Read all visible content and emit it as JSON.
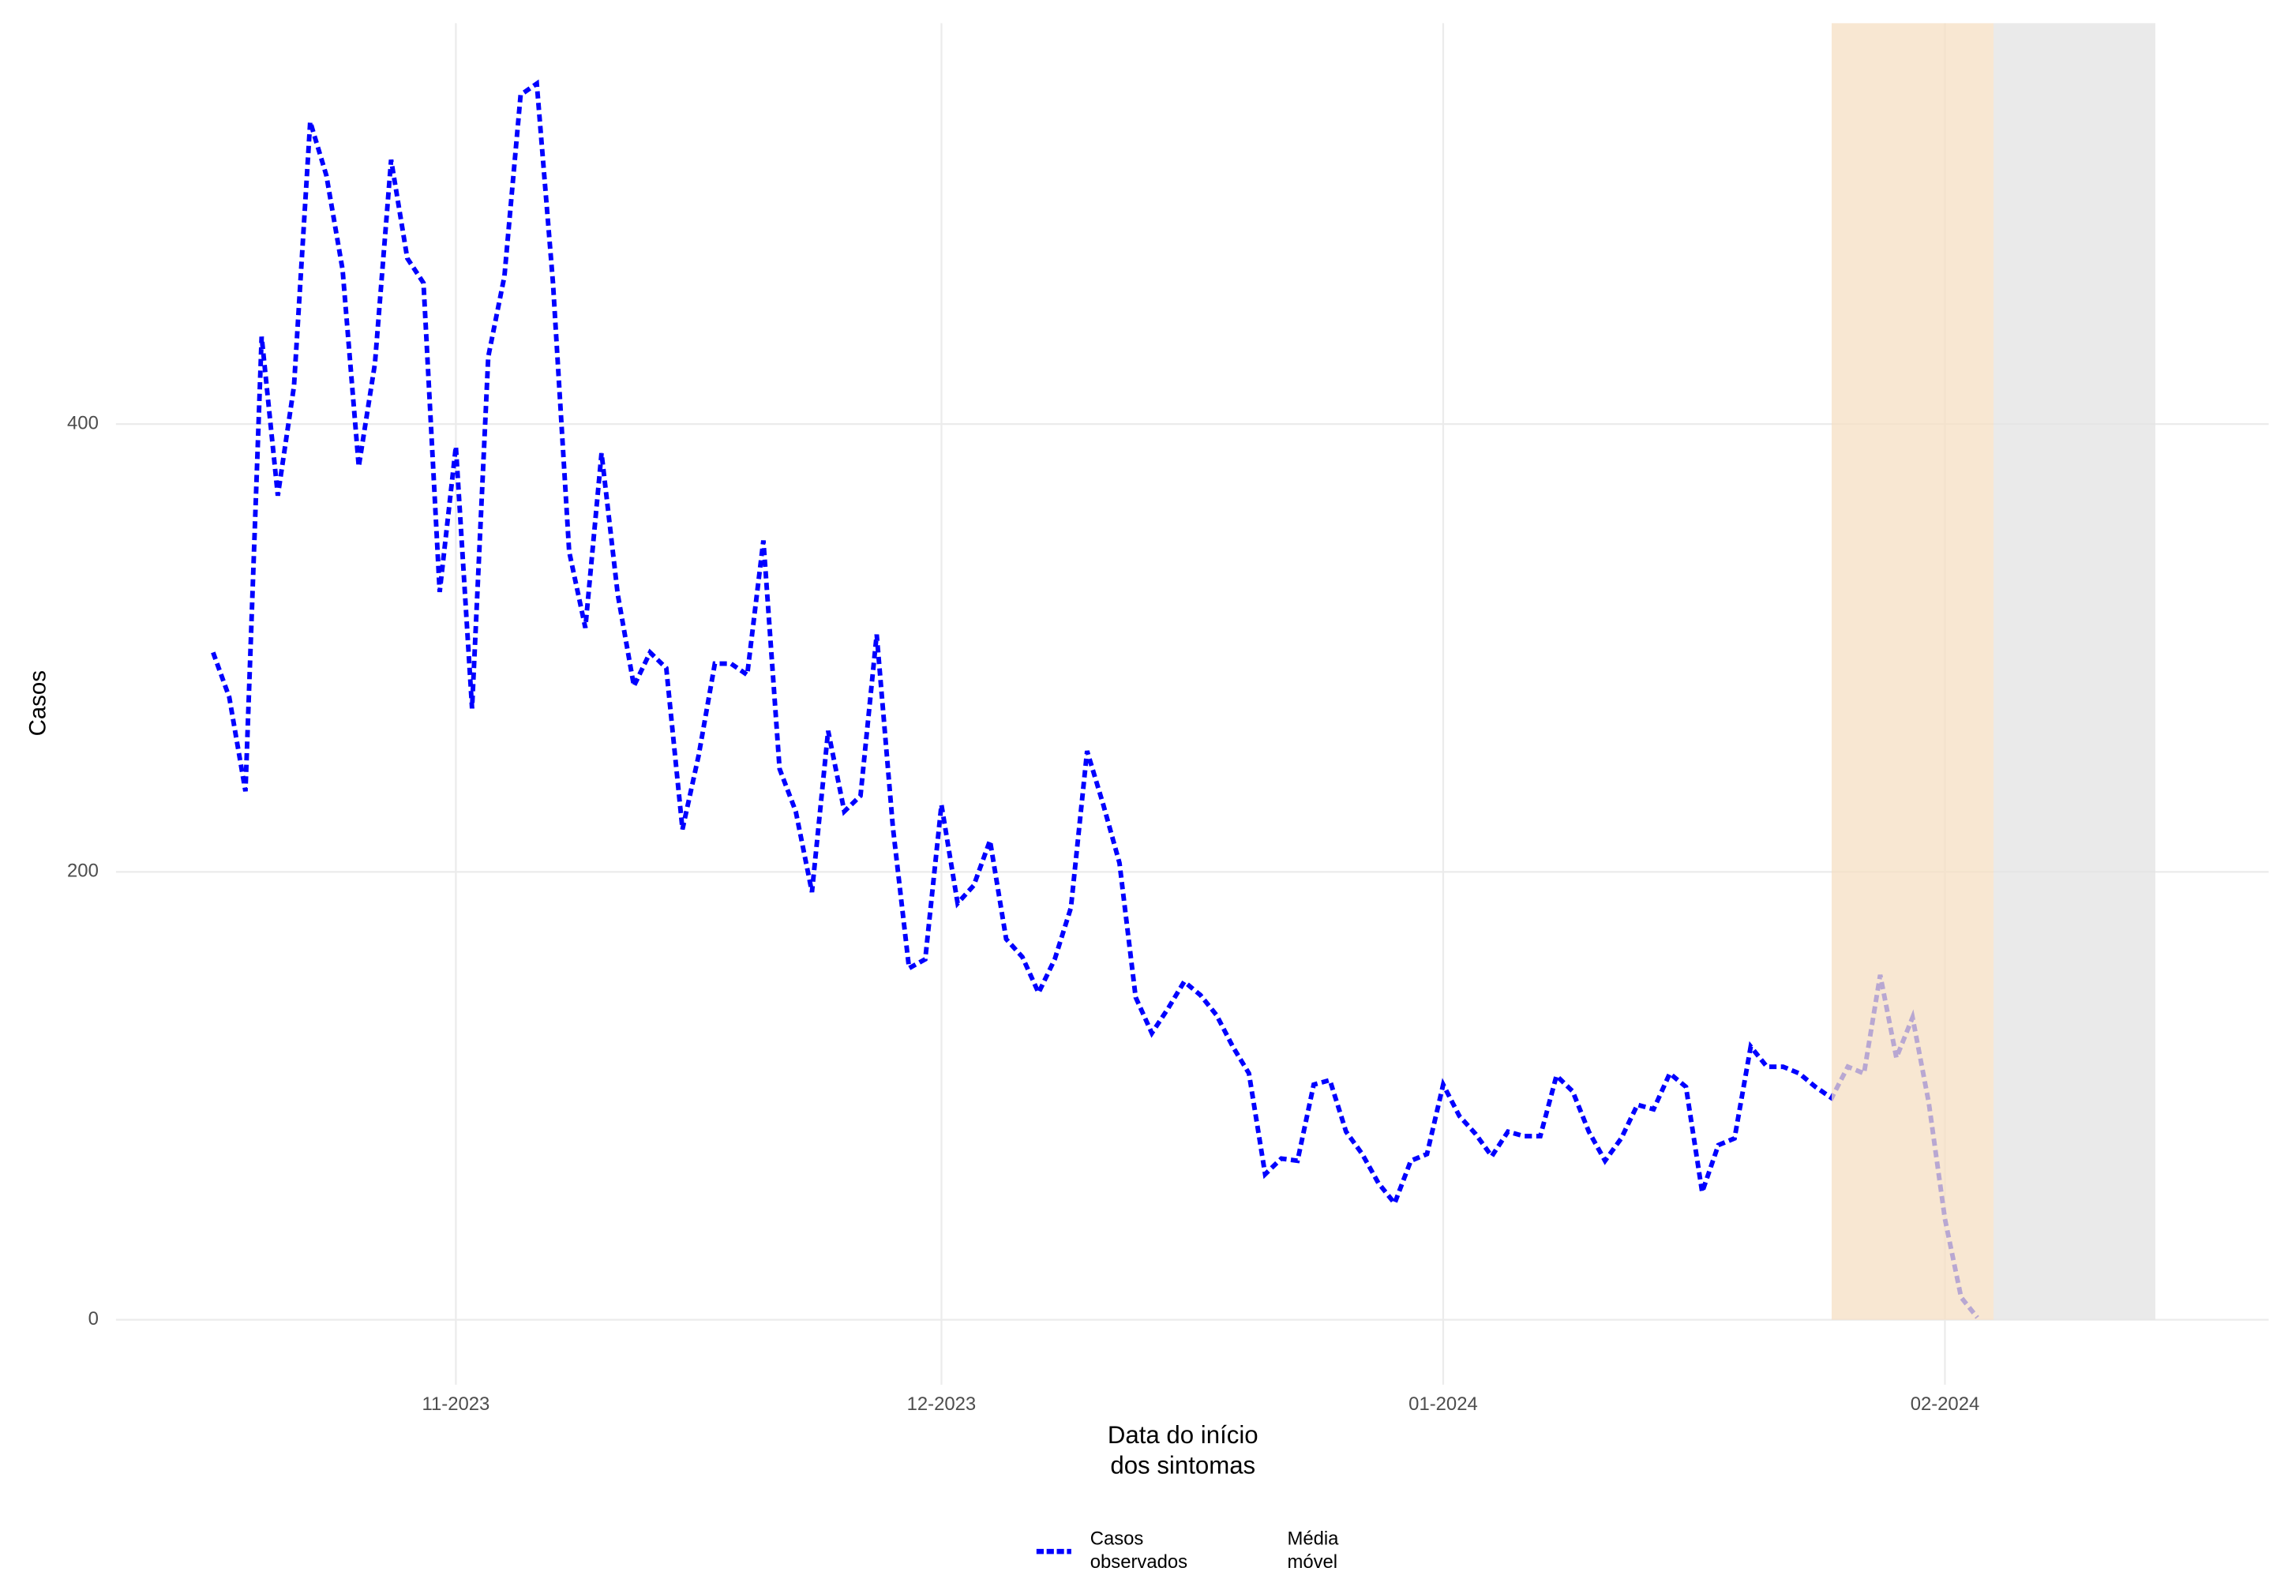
{
  "chart_data": {
    "type": "line",
    "x_label": "Data do início dos sintomas",
    "y_label": "Casos",
    "x": [
      0,
      1,
      2,
      3,
      4,
      5,
      6,
      7,
      8,
      9,
      10,
      11,
      12,
      13,
      14,
      15,
      16,
      17,
      18,
      19,
      20,
      21,
      22,
      23,
      24,
      25,
      26,
      27,
      28,
      29,
      30,
      31,
      32,
      33,
      34,
      35,
      36,
      37,
      38,
      39,
      40,
      41,
      42,
      43,
      44,
      45,
      46,
      47,
      48,
      49,
      50,
      51,
      52,
      53,
      54,
      55,
      56,
      57,
      58,
      59,
      60,
      61,
      62,
      63,
      64,
      65,
      66,
      67,
      68,
      69,
      70,
      71,
      72,
      73,
      74,
      75,
      76,
      77,
      78,
      79,
      80,
      81,
      82,
      83,
      84,
      85,
      86,
      87,
      88,
      89,
      90,
      91,
      92,
      93,
      94,
      95,
      96,
      97,
      98,
      99,
      100,
      101,
      102,
      103,
      104,
      105,
      106,
      107,
      108,
      109
    ],
    "series": [
      {
        "name": "Casos observados",
        "color": "#0000ff",
        "values": [
          298,
          278,
          236,
          439,
          368,
          417,
          535,
          511,
          469,
          381,
          427,
          518,
          474,
          463,
          325,
          390,
          273,
          430,
          466,
          547,
          552,
          463,
          343,
          309,
          387,
          324,
          283,
          298,
          291,
          219,
          252,
          293,
          293,
          288,
          348,
          246,
          227,
          191,
          263,
          227,
          234,
          306,
          220,
          157,
          161,
          230,
          186,
          194,
          214,
          170,
          162,
          146,
          161,
          184,
          254,
          230,
          204,
          144,
          128,
          139,
          151,
          145,
          136,
          122,
          110,
          65,
          72,
          71,
          105,
          107,
          84,
          74,
          61,
          52,
          71,
          74,
          105,
          91,
          83,
          73,
          84,
          82,
          82,
          109,
          102,
          84,
          71,
          81,
          96,
          94,
          110,
          104,
          57,
          78,
          81,
          122,
          113,
          113,
          110,
          104,
          99,
          113,
          110,
          154,
          117,
          135,
          97,
          45,
          10,
          1
        ]
      },
      {
        "name": "Média móvel",
        "values": [
          null,
          null,
          null,
          null,
          null,
          null,
          null,
          null,
          null,
          null,
          null,
          null,
          null,
          null,
          null,
          null,
          null,
          null,
          null,
          null,
          null,
          null,
          null,
          null,
          null,
          null,
          null,
          null,
          null,
          null,
          null,
          null,
          null,
          null,
          null,
          null,
          null,
          null,
          null,
          null,
          null,
          null,
          null,
          null,
          null,
          null,
          null,
          null,
          null,
          null,
          null,
          null,
          null,
          null,
          null,
          null,
          null,
          null,
          null,
          null,
          null,
          null,
          null,
          null,
          null,
          null,
          null,
          null,
          null,
          null,
          null,
          null,
          null,
          null,
          null,
          null,
          null,
          null,
          null,
          null,
          null,
          null,
          null,
          null,
          null,
          null,
          null,
          null,
          null,
          null,
          null,
          null,
          null,
          null,
          null,
          null,
          null,
          null,
          null,
          null,
          null,
          null,
          null,
          null,
          null,
          null,
          null,
          null,
          null,
          null
        ]
      }
    ],
    "shaded_regions": [
      {
        "xlim": [
          100,
          110
        ],
        "color": "#f5dfc3"
      },
      {
        "xlim": [
          110,
          120
        ],
        "color": "#e3e3e3"
      }
    ],
    "xlim": [
      -6,
      127
    ],
    "ylim": [
      -29,
      579
    ],
    "xticks": [
      {
        "value": 15,
        "label": "11-2023"
      },
      {
        "value": 45,
        "label": "12-2023"
      },
      {
        "value": 76,
        "label": "01-2024"
      },
      {
        "value": 107,
        "label": "02-2024"
      }
    ],
    "yticks": [
      0,
      200,
      400
    ],
    "grid": true,
    "legend": "bottom"
  }
}
